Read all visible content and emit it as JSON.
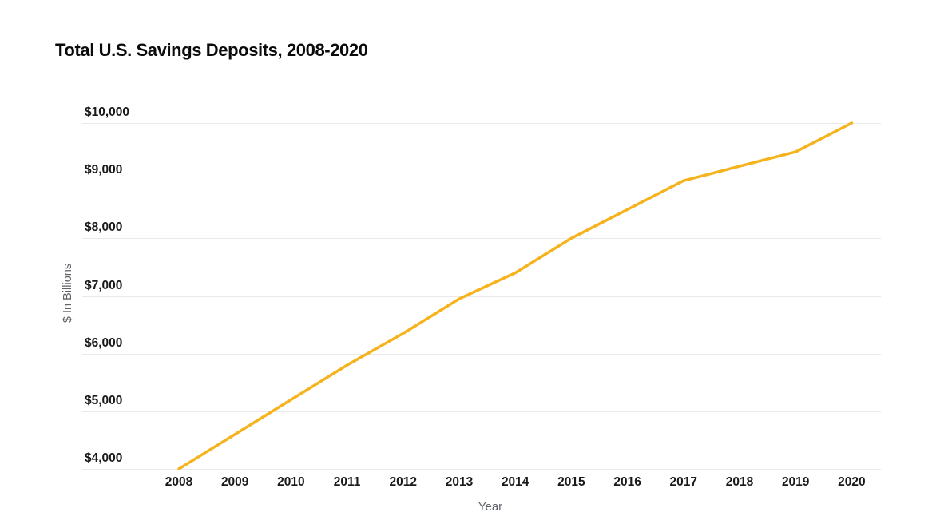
{
  "page": {
    "title": "Total U.S. Savings Deposits, 2008-2020"
  },
  "chart_data": {
    "type": "line",
    "title": "Total U.S. Savings Deposits, 2008-2020",
    "xlabel": "Year",
    "ylabel": "$ In Billions",
    "x": [
      2008,
      2009,
      2010,
      2011,
      2012,
      2013,
      2014,
      2015,
      2016,
      2017,
      2018,
      2019,
      2020
    ],
    "series": [
      {
        "name": "Total U.S. Savings Deposits",
        "values": [
          4000,
          4600,
          5200,
          5800,
          6350,
          6950,
          7400,
          8000,
          8500,
          9000,
          9250,
          9500,
          10000
        ],
        "color": "#F5B31E"
      }
    ],
    "ylim": [
      4000,
      10000
    ],
    "ytick_step": 1000,
    "ytick_labels": [
      "$4,000",
      "$5,000",
      "$6,000",
      "$7,000",
      "$8,000",
      "$9,000",
      "$10,000"
    ],
    "grid": true,
    "legend": "none",
    "colors": {
      "background": "#ffffff",
      "gridline": "#e9e9e9",
      "tick_text": "#1a1a1a",
      "axis_title_text": "#5f6368",
      "title_text": "#0b0b0b"
    }
  }
}
